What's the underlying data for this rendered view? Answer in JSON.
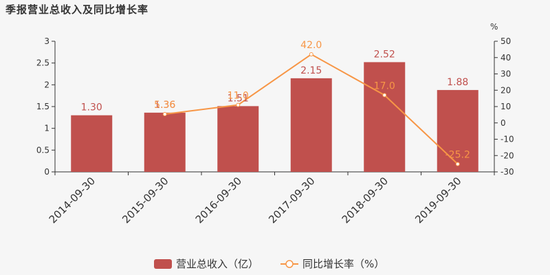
{
  "chart_data": {
    "type": "bar",
    "title": "季报营业总收入及同比增长率",
    "categories": [
      "2014-09-30",
      "2015-09-30",
      "2016-09-30",
      "2017-09-30",
      "2018-09-30",
      "2019-09-30"
    ],
    "series": [
      {
        "name": "营业总收入（亿）",
        "type": "bar",
        "axis": "left",
        "values": [
          1.3,
          1.36,
          1.51,
          2.15,
          2.52,
          1.88
        ],
        "labels": [
          "1.30",
          "1.36",
          "1.51",
          "2.15",
          "2.52",
          "1.88"
        ],
        "color": "#c0504d"
      },
      {
        "name": "同比增长率（%）",
        "type": "line",
        "axis": "right",
        "values": [
          null,
          5.36,
          11.0,
          42.0,
          17.0,
          -25.2
        ],
        "labels": [
          "",
          "5.36",
          "11.0",
          "42.0",
          "17.0",
          "-25.2"
        ],
        "color": "#f79646"
      }
    ],
    "y_left": {
      "min": 0,
      "max": 3,
      "ticks": [
        "0",
        "0.5",
        "1",
        "1.5",
        "2",
        "2.5",
        "3"
      ]
    },
    "y_right": {
      "min": -30,
      "max": 50,
      "unit": "%",
      "ticks": [
        "-30",
        "-20",
        "-10",
        "0",
        "10",
        "20",
        "30",
        "40",
        "50"
      ]
    },
    "legend_position": "bottom-center",
    "grid": false
  }
}
